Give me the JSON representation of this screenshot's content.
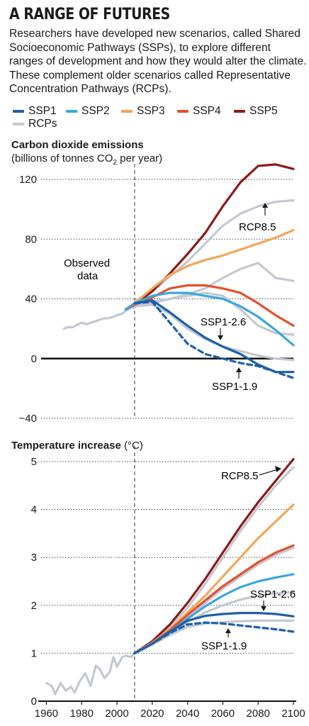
{
  "header": {
    "title": "A RANGE OF FUTURES",
    "description": "Researchers have developed new scenarios, called Shared Socioeconomic Pathways (SSPs), to explore different ranges of development and how they would alter the climate. These complement older scenarios called Representative Concentration Pathways (RCPs)."
  },
  "legend": [
    {
      "label": "SSP1",
      "color": "#1d5fa8"
    },
    {
      "label": "SSP2",
      "color": "#3aa6dd"
    },
    {
      "label": "SSP3",
      "color": "#f5a55a"
    },
    {
      "label": "SSP4",
      "color": "#e4502c"
    },
    {
      "label": "SSP5",
      "color": "#8b1a1a"
    },
    {
      "label": "RCPs",
      "color": "#c4c8d2"
    }
  ],
  "panels": {
    "emissions": {
      "title": "Carbon dioxide emissions",
      "subtitle_pre": "(billions of tonnes CO",
      "subtitle_sub": "2",
      "subtitle_post": " per year)",
      "observed_label_line1": "Observed",
      "observed_label_line2": "data",
      "rcp_label": "RCP8.5",
      "ssp126_label": "SSP1-2.6",
      "ssp119_label": "SSP1-1.9"
    },
    "temperature": {
      "title": "Temperature increase",
      "unit": " (°C)",
      "rcp_label": "RCP8.5",
      "ssp126_label": "SSP1-2.6",
      "ssp119_label": "SSP1-1.9"
    }
  },
  "chart_data": [
    {
      "type": "line",
      "title": "Carbon dioxide emissions",
      "ylabel": "(billions of tonnes CO2 per year)",
      "xlim": [
        1957,
        2100
      ],
      "ylim": [
        -40,
        120
      ],
      "yticks": [
        -40,
        0,
        40,
        80,
        120
      ],
      "zero_line": 0,
      "divider_x": 2010,
      "series": [
        {
          "name": "Observed data",
          "color": "#c4c8d2",
          "x": [
            1970,
            1972,
            1975,
            1978,
            1980,
            1983,
            1985,
            1988,
            1990,
            1993,
            1995,
            1998,
            2000,
            2003,
            2005,
            2008,
            2010
          ],
          "y": [
            20,
            21,
            21,
            23,
            24,
            23,
            24,
            25,
            26,
            27,
            27,
            28,
            29,
            30,
            32,
            34,
            34
          ]
        },
        {
          "name": "RCPs",
          "color": "#c4c8d2",
          "x": [
            2010,
            2020,
            2030,
            2040,
            2050,
            2060,
            2070,
            2080,
            2090,
            2100
          ],
          "y": [
            38,
            45,
            55,
            65,
            77,
            89,
            97,
            102,
            105,
            106
          ]
        },
        {
          "name": "RCPs",
          "color": "#c4c8d2",
          "x": [
            2010,
            2020,
            2030,
            2040,
            2050,
            2060,
            2070,
            2080,
            2090,
            2100
          ],
          "y": [
            36,
            38,
            40,
            43,
            47,
            54,
            60,
            64,
            54,
            52
          ]
        },
        {
          "name": "RCPs",
          "color": "#c4c8d2",
          "x": [
            2010,
            2020,
            2030,
            2040,
            2050,
            2060,
            2070,
            2080,
            2090,
            2100
          ],
          "y": [
            35,
            37,
            40,
            42,
            44,
            42,
            33,
            22,
            17,
            16
          ]
        },
        {
          "name": "RCPs",
          "color": "#c4c8d2",
          "x": [
            2010,
            2020,
            2030,
            2040,
            2050,
            2060,
            2070,
            2080,
            2090,
            2100
          ],
          "y": [
            35,
            36,
            30,
            20,
            13,
            8,
            5,
            2,
            0,
            -1
          ]
        },
        {
          "name": "SSP5",
          "color": "#8b1a1a",
          "x": [
            2005,
            2010,
            2020,
            2030,
            2040,
            2050,
            2060,
            2070,
            2080,
            2090,
            2100
          ],
          "y": [
            33,
            36,
            45,
            57,
            70,
            84,
            102,
            118,
            129,
            130,
            127
          ]
        },
        {
          "name": "SSP3",
          "color": "#f5a55a",
          "x": [
            2005,
            2010,
            2020,
            2030,
            2040,
            2050,
            2060,
            2070,
            2080,
            2090,
            2100
          ],
          "y": [
            33,
            37,
            47,
            56,
            62,
            66,
            69,
            73,
            77,
            81,
            86
          ]
        },
        {
          "name": "SSP4",
          "color": "#e4502c",
          "x": [
            2005,
            2010,
            2020,
            2030,
            2040,
            2050,
            2060,
            2070,
            2080,
            2090,
            2100
          ],
          "y": [
            33,
            36,
            41,
            47,
            49,
            49,
            47,
            44,
            37,
            29,
            22
          ]
        },
        {
          "name": "SSP2",
          "color": "#3aa6dd",
          "x": [
            2005,
            2010,
            2020,
            2030,
            2040,
            2050,
            2060,
            2070,
            2080,
            2090,
            2100
          ],
          "y": [
            33,
            37,
            42,
            44,
            44,
            42,
            40,
            35,
            28,
            19,
            9
          ]
        },
        {
          "name": "SSP1-2.6",
          "color": "#1d5fa8",
          "x": [
            2010,
            2020,
            2030,
            2040,
            2050,
            2060,
            2070,
            2080,
            2090,
            2100
          ],
          "y": [
            37,
            39,
            31,
            22,
            14,
            8,
            3,
            -4,
            -9,
            -9
          ]
        },
        {
          "name": "SSP1-1.9",
          "color": "#1d5fa8",
          "dashed": true,
          "x": [
            2010,
            2020,
            2030,
            2040,
            2050,
            2060,
            2070,
            2080,
            2090,
            2100
          ],
          "y": [
            37,
            38,
            24,
            10,
            3,
            0,
            -3,
            -5,
            -9,
            -13
          ]
        }
      ]
    },
    {
      "type": "line",
      "title": "Temperature increase",
      "ylabel": "(°C)",
      "xlim": [
        1957,
        2100
      ],
      "ylim": [
        0,
        5
      ],
      "yticks": [
        0,
        1,
        2,
        3,
        4,
        5
      ],
      "xticks": [
        1960,
        1980,
        2000,
        2020,
        2040,
        2060,
        2080,
        2100
      ],
      "divider_x": 2010,
      "series": [
        {
          "name": "Observed data",
          "color": "#c4c8d2",
          "x": [
            1960,
            1963,
            1965,
            1968,
            1971,
            1974,
            1976,
            1979,
            1982,
            1985,
            1988,
            1990,
            1993,
            1996,
            1998,
            2000,
            2003,
            2005,
            2008,
            2010
          ],
          "y": [
            0.38,
            0.32,
            0.15,
            0.38,
            0.22,
            0.3,
            0.18,
            0.42,
            0.58,
            0.32,
            0.74,
            0.68,
            0.48,
            0.62,
            0.92,
            0.72,
            0.92,
            0.95,
            0.92,
            1.0
          ]
        },
        {
          "name": "RCPs",
          "color": "#c4c8d2",
          "x": [
            2010,
            2020,
            2030,
            2040,
            2050,
            2060,
            2070,
            2080,
            2090,
            2100
          ],
          "y": [
            1.0,
            1.22,
            1.55,
            1.95,
            2.45,
            3.0,
            3.55,
            4.05,
            4.5,
            4.88
          ]
        },
        {
          "name": "RCPs",
          "color": "#c4c8d2",
          "x": [
            2010,
            2020,
            2030,
            2040,
            2050,
            2060,
            2070,
            2080,
            2090,
            2100
          ],
          "y": [
            1.0,
            1.2,
            1.45,
            1.75,
            2.05,
            2.35,
            2.6,
            2.85,
            3.05,
            3.2
          ]
        },
        {
          "name": "RCPs",
          "color": "#c4c8d2",
          "x": [
            2010,
            2020,
            2030,
            2040,
            2050,
            2060,
            2070,
            2080,
            2090,
            2100
          ],
          "y": [
            1.0,
            1.18,
            1.4,
            1.65,
            1.85,
            2.0,
            2.12,
            2.2,
            2.25,
            2.28
          ]
        },
        {
          "name": "RCPs",
          "color": "#c4c8d2",
          "x": [
            2010,
            2020,
            2030,
            2040,
            2050,
            2060,
            2070,
            2080,
            2090,
            2100
          ],
          "y": [
            1.0,
            1.18,
            1.38,
            1.55,
            1.62,
            1.65,
            1.67,
            1.68,
            1.68,
            1.68
          ]
        },
        {
          "name": "SSP5",
          "color": "#8b1a1a",
          "x": [
            2010,
            2020,
            2030,
            2040,
            2050,
            2060,
            2070,
            2080,
            2090,
            2100
          ],
          "y": [
            1.0,
            1.25,
            1.6,
            2.05,
            2.55,
            3.1,
            3.65,
            4.15,
            4.6,
            5.05
          ]
        },
        {
          "name": "SSP3",
          "color": "#f5a55a",
          "x": [
            2010,
            2020,
            2030,
            2040,
            2050,
            2060,
            2070,
            2080,
            2090,
            2100
          ],
          "y": [
            1.0,
            1.22,
            1.5,
            1.85,
            2.2,
            2.6,
            3.0,
            3.4,
            3.75,
            4.1
          ]
        },
        {
          "name": "SSP4",
          "color": "#e4502c",
          "x": [
            2010,
            2020,
            2030,
            2040,
            2050,
            2060,
            2070,
            2080,
            2090,
            2100
          ],
          "y": [
            1.0,
            1.2,
            1.48,
            1.8,
            2.1,
            2.4,
            2.65,
            2.9,
            3.1,
            3.25
          ]
        },
        {
          "name": "SSP2",
          "color": "#3aa6dd",
          "x": [
            2010,
            2020,
            2030,
            2040,
            2050,
            2060,
            2070,
            2080,
            2090,
            2100
          ],
          "y": [
            1.0,
            1.2,
            1.45,
            1.72,
            1.98,
            2.2,
            2.38,
            2.5,
            2.58,
            2.65
          ]
        },
        {
          "name": "SSP1-2.6",
          "color": "#1d5fa8",
          "x": [
            2010,
            2020,
            2030,
            2040,
            2050,
            2060,
            2070,
            2080,
            2090,
            2100
          ],
          "y": [
            1.0,
            1.2,
            1.45,
            1.68,
            1.78,
            1.82,
            1.84,
            1.84,
            1.82,
            1.77
          ]
        },
        {
          "name": "SSP1-1.9",
          "color": "#1d5fa8",
          "dashed": true,
          "x": [
            2010,
            2020,
            2030,
            2040,
            2050,
            2060,
            2070,
            2080,
            2090,
            2100
          ],
          "y": [
            1.0,
            1.2,
            1.42,
            1.6,
            1.64,
            1.62,
            1.58,
            1.54,
            1.5,
            1.45
          ]
        }
      ]
    }
  ]
}
